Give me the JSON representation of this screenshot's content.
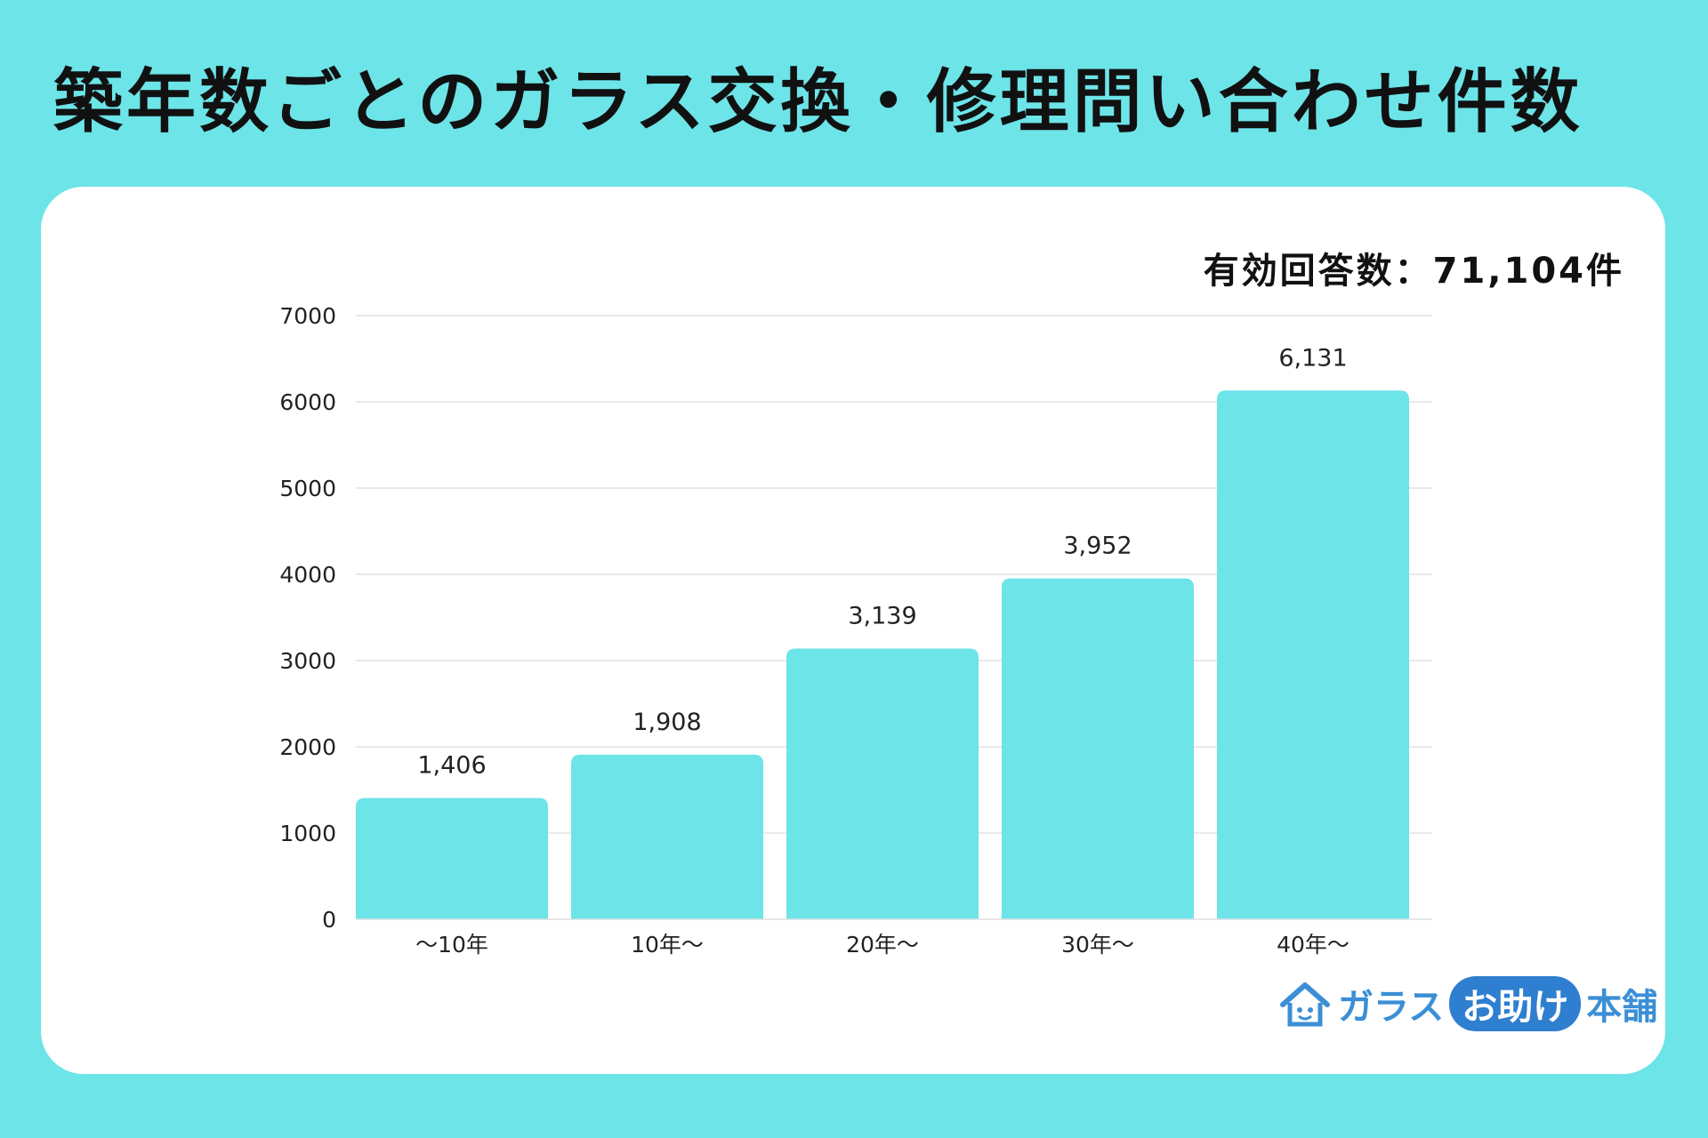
{
  "title": "築年数ごとのガラス交換・修理問い合わせ件数",
  "responses_label": "有効回答数：71,104件",
  "colors": {
    "background": "#6de4e8",
    "bar": "#6de4e8",
    "card": "#ffffff",
    "logo": "#3b8fd6"
  },
  "logo": {
    "part1": "ガラス",
    "part2": "お助け",
    "part3": "本舗",
    "icon": "house-face-icon"
  },
  "chart_data": {
    "type": "bar",
    "title": "築年数ごとのガラス交換・修理問い合わせ件数",
    "categories": [
      "～10年",
      "10年～",
      "20年～",
      "30年～",
      "40年～"
    ],
    "values": [
      1406,
      1908,
      3139,
      3952,
      6131
    ],
    "value_labels": [
      "1,406",
      "1,908",
      "3,139",
      "3,952",
      "6,131"
    ],
    "yticks": [
      0,
      1000,
      2000,
      3000,
      4000,
      5000,
      6000,
      7000
    ],
    "ylim": [
      0,
      7000
    ],
    "xlabel": "",
    "ylabel": "",
    "grid": true
  }
}
